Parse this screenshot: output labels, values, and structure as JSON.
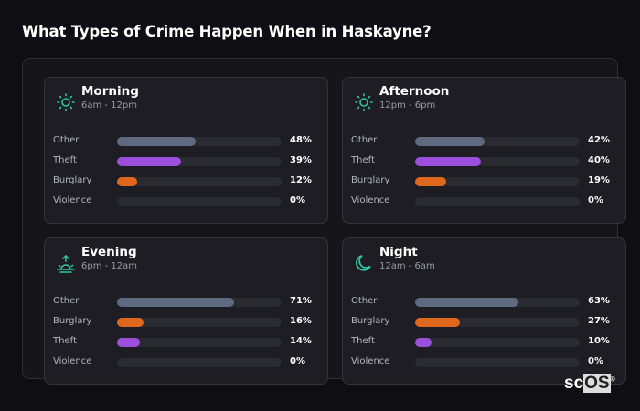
{
  "title": "What Types of Crime Happen When in Haskayne?",
  "colors": {
    "Other": "#5e6a80",
    "Theft": "#9b4fdc",
    "Burglary": "#e0681c",
    "Violence": "#2a2a31",
    "accent": "#2ec4a0"
  },
  "cards": [
    {
      "name": "Morning",
      "range": "6am - 12pm",
      "icon": "sun-icon",
      "rows": [
        {
          "label": "Other",
          "value": 48,
          "pct": "48%"
        },
        {
          "label": "Theft",
          "value": 39,
          "pct": "39%"
        },
        {
          "label": "Burglary",
          "value": 12,
          "pct": "12%"
        },
        {
          "label": "Violence",
          "value": 0,
          "pct": "0%"
        }
      ]
    },
    {
      "name": "Afternoon",
      "range": "12pm - 6pm",
      "icon": "sun-icon",
      "rows": [
        {
          "label": "Other",
          "value": 42,
          "pct": "42%"
        },
        {
          "label": "Theft",
          "value": 40,
          "pct": "40%"
        },
        {
          "label": "Burglary",
          "value": 19,
          "pct": "19%"
        },
        {
          "label": "Violence",
          "value": 0,
          "pct": "0%"
        }
      ]
    },
    {
      "name": "Evening",
      "range": "6pm - 12am",
      "icon": "sunset-icon",
      "rows": [
        {
          "label": "Other",
          "value": 71,
          "pct": "71%"
        },
        {
          "label": "Burglary",
          "value": 16,
          "pct": "16%"
        },
        {
          "label": "Theft",
          "value": 14,
          "pct": "14%"
        },
        {
          "label": "Violence",
          "value": 0,
          "pct": "0%"
        }
      ]
    },
    {
      "name": "Night",
      "range": "12am - 6am",
      "icon": "moon-icon",
      "rows": [
        {
          "label": "Other",
          "value": 63,
          "pct": "63%"
        },
        {
          "label": "Burglary",
          "value": 27,
          "pct": "27%"
        },
        {
          "label": "Theft",
          "value": 10,
          "pct": "10%"
        },
        {
          "label": "Violence",
          "value": 0,
          "pct": "0%"
        }
      ]
    }
  ],
  "logo": "scOS"
}
